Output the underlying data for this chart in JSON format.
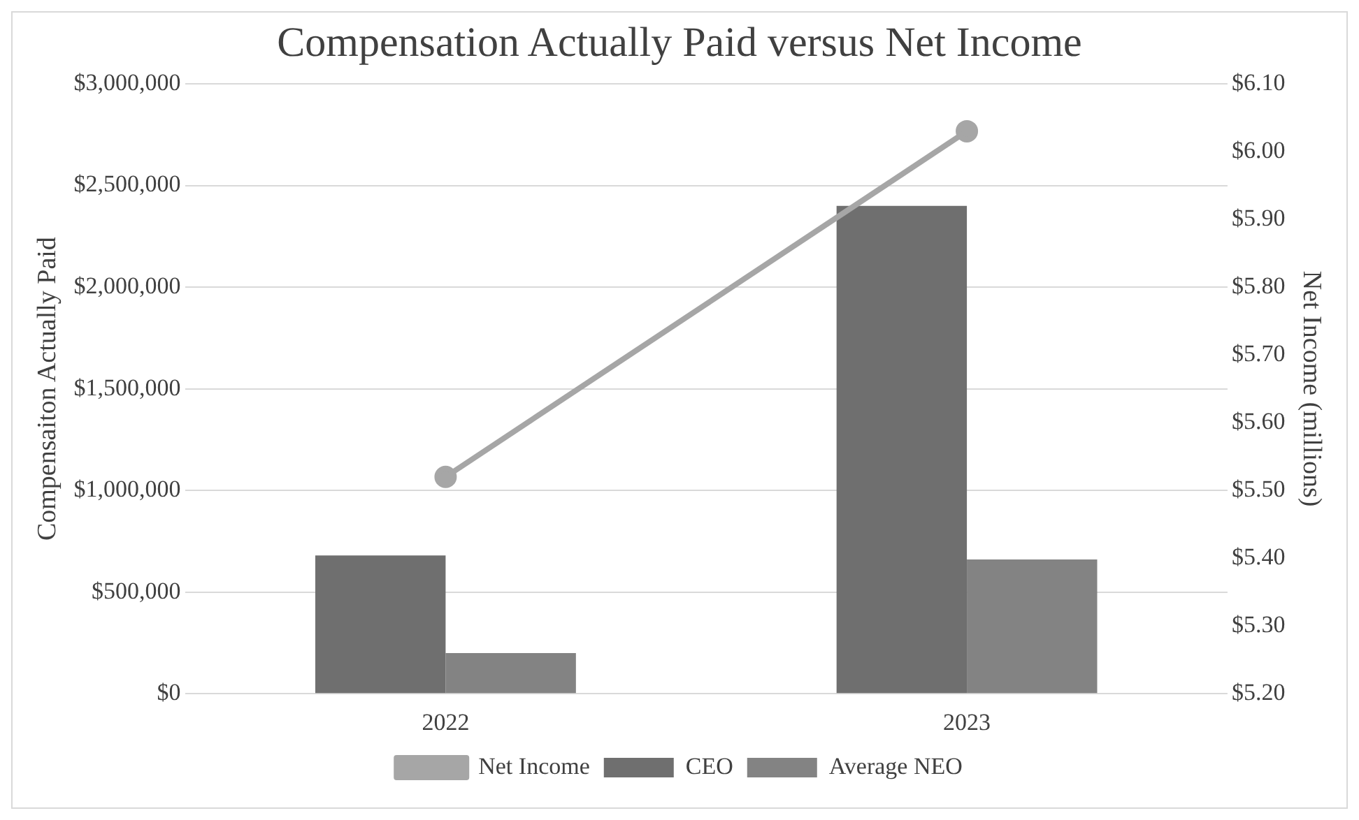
{
  "chart_data": {
    "type": "bar",
    "title": "Compensation Actually Paid versus Net Income",
    "ylabel": "Compensaiton Actually Paid",
    "y2label": "Net Income (millions)",
    "categories": [
      "2022",
      "2023"
    ],
    "series": [
      {
        "name": "CEO",
        "color": "#6f6f6f",
        "values": [
          680000,
          2400000
        ]
      },
      {
        "name": "Average NEO",
        "color": "#838383",
        "values": [
          200000,
          660000
        ]
      },
      {
        "name": "Net Income",
        "type": "line",
        "axis": "y2",
        "color": "#a6a6a6",
        "values": [
          5.52,
          6.03
        ]
      }
    ],
    "ylim": [
      0,
      3000000
    ],
    "yticks": [
      {
        "value": 0,
        "label": "$0"
      },
      {
        "value": 500000,
        "label": "$500,000"
      },
      {
        "value": 1000000,
        "label": "$1,000,000"
      },
      {
        "value": 1500000,
        "label": "$1,500,000"
      },
      {
        "value": 2000000,
        "label": "$2,000,000"
      },
      {
        "value": 2500000,
        "label": "$2,500,000"
      },
      {
        "value": 3000000,
        "label": "$3,000,000"
      }
    ],
    "y2lim": [
      5.2,
      6.1
    ],
    "y2ticks": [
      {
        "value": 5.2,
        "label": "$5.20"
      },
      {
        "value": 5.3,
        "label": "$5.30"
      },
      {
        "value": 5.4,
        "label": "$5.40"
      },
      {
        "value": 5.5,
        "label": "$5.50"
      },
      {
        "value": 5.6,
        "label": "$5.60"
      },
      {
        "value": 5.7,
        "label": "$5.70"
      },
      {
        "value": 5.8,
        "label": "$5.80"
      },
      {
        "value": 5.9,
        "label": "$5.90"
      },
      {
        "value": 6.0,
        "label": "$6.00"
      },
      {
        "value": 6.1,
        "label": "$6.10"
      }
    ],
    "grid": "y",
    "legend": "bottom",
    "marker": "circle",
    "line_style": "solid"
  }
}
